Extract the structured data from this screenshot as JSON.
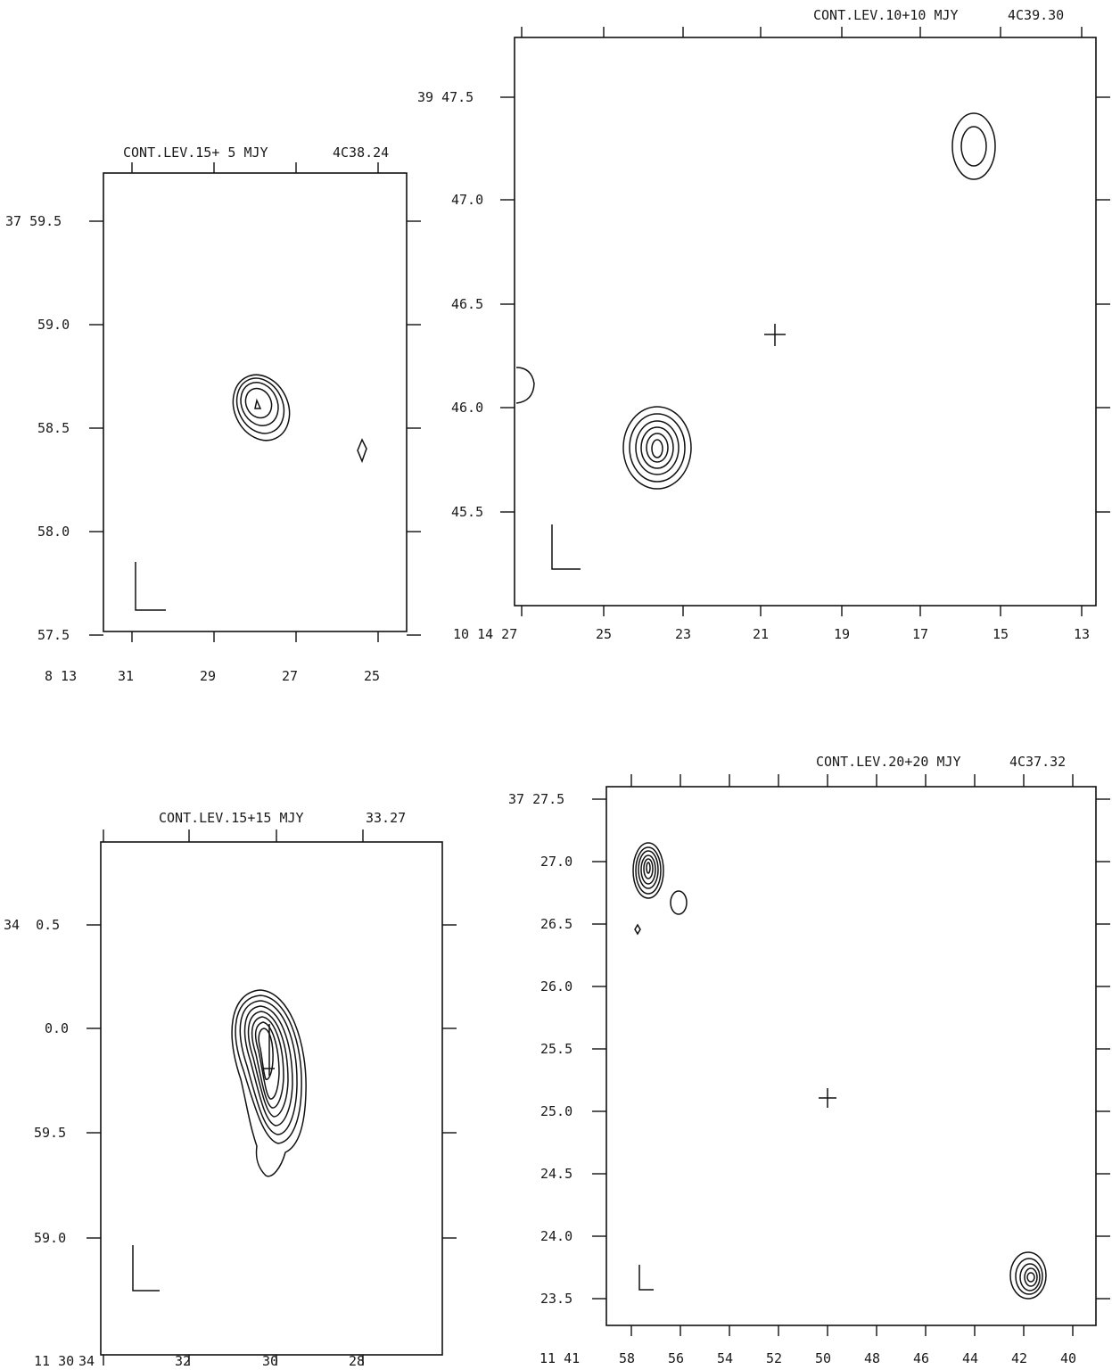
{
  "panels": [
    {
      "id": "4c38-24",
      "header": "CONT.LEV.15+ 5 MJY",
      "source": "4C38.24",
      "dec_labels": [
        "37 59.5",
        "59.0",
        "58.5",
        "58.0",
        "57.5"
      ],
      "ra_labels": [
        "8 13",
        "31",
        "29",
        "27",
        "25"
      ]
    },
    {
      "id": "4c39-30",
      "header": "CONT.LEV.10+10 MJY",
      "source": "4C39.30",
      "dec_labels": [
        "39 47.5",
        "47.0",
        "46.5",
        "46.0",
        "45.5"
      ],
      "ra_labels": [
        "10 14 27",
        "25",
        "23",
        "21",
        "19",
        "17",
        "15",
        "13"
      ]
    },
    {
      "id": "33-27",
      "header": "CONT.LEV.15+15 MJY",
      "source": "33.27",
      "dec_labels": [
        "34  0.5",
        "0.0",
        "59.5",
        "59.0"
      ],
      "ra_labels": [
        "11 30",
        "34",
        "32",
        "30",
        "28"
      ]
    },
    {
      "id": "4c37-32",
      "header": "CONT.LEV.20+20 MJY",
      "source": "4C37.32",
      "dec_labels": [
        "37 27.5",
        "27.0",
        "26.5",
        "26.0",
        "25.5",
        "25.0",
        "24.5",
        "24.0",
        "23.5"
      ],
      "ra_labels": [
        "11 41",
        "58",
        "56",
        "54",
        "52",
        "50",
        "48",
        "46",
        "44",
        "42",
        "40"
      ]
    }
  ]
}
